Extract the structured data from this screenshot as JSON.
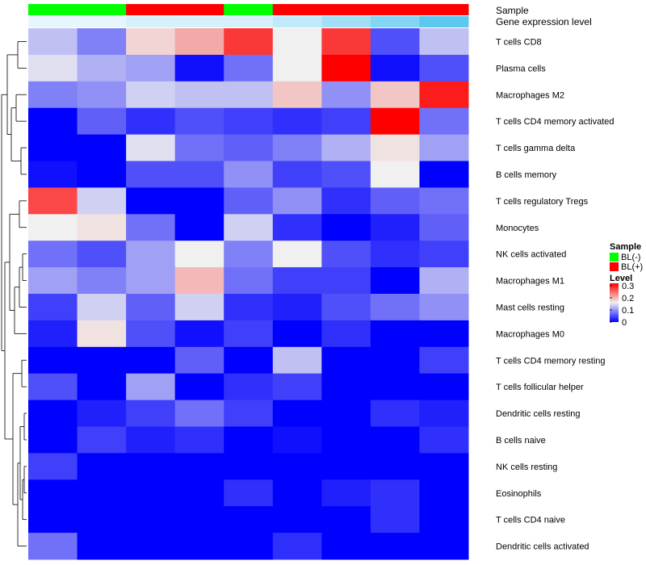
{
  "chart_data": {
    "type": "heatmap",
    "annotation_rows": {
      "sample_label": "Sample",
      "expression_label": "Gene expression level"
    },
    "columns": [
      {
        "sample": "BL(-)",
        "expression": 0.0
      },
      {
        "sample": "BL(-)",
        "expression": 0.0
      },
      {
        "sample": "BL(+)",
        "expression": 0.1
      },
      {
        "sample": "BL(+)",
        "expression": 0.1
      },
      {
        "sample": "BL(-)",
        "expression": 0.1
      },
      {
        "sample": "BL(+)",
        "expression": 0.25
      },
      {
        "sample": "BL(+)",
        "expression": 0.45
      },
      {
        "sample": "BL(+)",
        "expression": 0.65
      },
      {
        "sample": "BL(+)",
        "expression": 0.9
      }
    ],
    "rows": [
      "T cells CD8",
      "Plasma cells",
      "Macrophages M2",
      "T cells CD4 memory activated",
      "T cells gamma delta",
      "B cells memory",
      "T cells regulatory  Tregs",
      "Monocytes",
      "NK cells activated",
      "Macrophages M1",
      "Mast cells resting",
      "Macrophages M0",
      "T cells CD4 memory resting",
      "T cells follicular helper",
      "Dendritic cells resting",
      "B cells naive",
      "NK cells resting",
      "Eosinophils",
      "T cells CD4 naive",
      "Dendritic cells activated"
    ],
    "values": [
      [
        0.12,
        0.08,
        0.17,
        0.2,
        0.28,
        0.15,
        0.28,
        0.05,
        0.12
      ],
      [
        0.14,
        0.11,
        0.1,
        0.01,
        0.07,
        0.15,
        0.32,
        0.01,
        0.05
      ],
      [
        0.08,
        0.09,
        0.13,
        0.12,
        0.12,
        0.18,
        0.09,
        0.18,
        0.3
      ],
      [
        0.0,
        0.06,
        0.03,
        0.05,
        0.04,
        0.03,
        0.04,
        0.32,
        0.07
      ],
      [
        0.0,
        0.0,
        0.14,
        0.07,
        0.06,
        0.08,
        0.11,
        0.16,
        0.1
      ],
      [
        0.01,
        0.0,
        0.05,
        0.05,
        0.09,
        0.04,
        0.05,
        0.15,
        0.0
      ],
      [
        0.27,
        0.13,
        0.0,
        0.0,
        0.06,
        0.09,
        0.03,
        0.06,
        0.07
      ],
      [
        0.15,
        0.16,
        0.07,
        0.0,
        0.13,
        0.03,
        0.0,
        0.02,
        0.06
      ],
      [
        0.07,
        0.05,
        0.1,
        0.15,
        0.08,
        0.15,
        0.05,
        0.03,
        0.04
      ],
      [
        0.1,
        0.08,
        0.1,
        0.19,
        0.07,
        0.04,
        0.04,
        0.0,
        0.11
      ],
      [
        0.04,
        0.13,
        0.06,
        0.13,
        0.03,
        0.02,
        0.05,
        0.07,
        0.09
      ],
      [
        0.02,
        0.16,
        0.05,
        0.01,
        0.04,
        0.0,
        0.03,
        0.0,
        0.0
      ],
      [
        0.0,
        0.0,
        0.0,
        0.06,
        0.0,
        0.12,
        0.0,
        0.0,
        0.04
      ],
      [
        0.05,
        0.0,
        0.1,
        0.0,
        0.03,
        0.04,
        0.0,
        0.0,
        0.0
      ],
      [
        0.0,
        0.02,
        0.04,
        0.07,
        0.04,
        0.0,
        0.0,
        0.03,
        0.02
      ],
      [
        0.0,
        0.04,
        0.02,
        0.03,
        0.0,
        0.01,
        0.0,
        0.0,
        0.03
      ],
      [
        0.04,
        0.0,
        0.0,
        0.0,
        0.0,
        0.0,
        0.0,
        0.0,
        0.0
      ],
      [
        0.0,
        0.0,
        0.0,
        0.0,
        0.03,
        0.0,
        0.02,
        0.03,
        0.0
      ],
      [
        0.0,
        0.0,
        0.0,
        0.0,
        0.0,
        0.0,
        0.0,
        0.03,
        0.0
      ],
      [
        0.07,
        0.0,
        0.0,
        0.0,
        0.0,
        0.03,
        0.0,
        0.0,
        0.0
      ]
    ],
    "color_scale": {
      "min": 0.0,
      "mid": 0.15,
      "max": 0.32,
      "low_color": "#0000ff",
      "mid_color": "#f0f0f0",
      "high_color": "#ff0000"
    },
    "expression_scale": {
      "low_color": "#e6f6fc",
      "high_color": "#4ec3ee"
    },
    "sample_colors": {
      "BL(-)": "#00ff00",
      "BL(+)": "#ff0000"
    },
    "legend": {
      "placement": "right",
      "sample_title": "Sample",
      "sample_entries": [
        "BL(-)",
        "BL(+)"
      ],
      "level_title": "Level",
      "level_ticks": [
        {
          "label": "0.3",
          "value": 0.3
        },
        {
          "label": "0.2",
          "value": 0.2
        },
        {
          "label": "0.1",
          "value": 0.1
        },
        {
          "label": "0",
          "value": 0.0
        }
      ]
    },
    "dendrogram": {
      "side": "left"
    }
  }
}
